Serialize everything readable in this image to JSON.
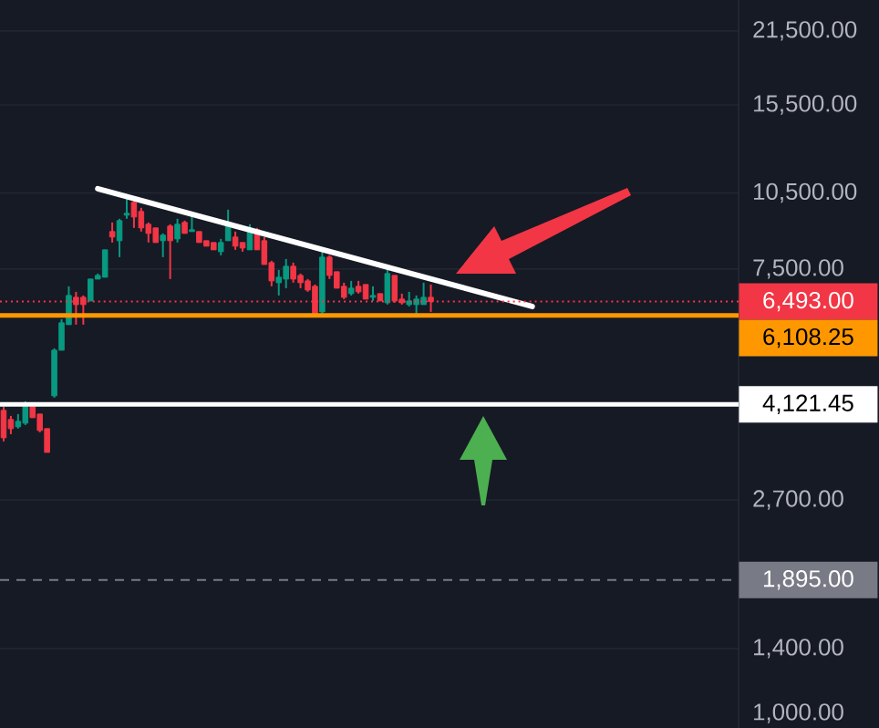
{
  "chart_data": {
    "type": "candlestick",
    "log": "y",
    "grid": "y",
    "tick_labels": "y",
    "categories": [
      null,
      null,
      null,
      null,
      null,
      null,
      null,
      null,
      null,
      null,
      null,
      null,
      null,
      null,
      null,
      null,
      null,
      null,
      null,
      null,
      null,
      null,
      null,
      null,
      null,
      null,
      null,
      null,
      null,
      null,
      null,
      null,
      null,
      null,
      null,
      null,
      null,
      null,
      null,
      null,
      null,
      null,
      null,
      null,
      null,
      null,
      null,
      null,
      null,
      null,
      null,
      null,
      null,
      null,
      null,
      null,
      null,
      null,
      null,
      null,
      null,
      null,
      null,
      null,
      null,
      null,
      null,
      null,
      null,
      null,
      null,
      null,
      null,
      null,
      null,
      null,
      null,
      null,
      null,
      null,
      null,
      null,
      null,
      null,
      null,
      null,
      null,
      null,
      null,
      null,
      null,
      null,
      null,
      null,
      null,
      null,
      null,
      null,
      null,
      null,
      null,
      null
    ],
    "ylim": [
      985,
      24650
    ],
    "yticks": [
      {
        "value": 1000,
        "label": "1,000.00"
      },
      {
        "value": 1400,
        "label": "1,400.00"
      },
      {
        "value": 2700,
        "label": "2,700.00"
      },
      {
        "value": 7500,
        "label": "7,500.00"
      },
      {
        "value": 10500,
        "label": "10,500.00"
      },
      {
        "value": 15500,
        "label": "15,500.00"
      },
      {
        "value": 21500,
        "label": "21,500.00"
      }
    ],
    "series": [
      {
        "ohlc": [
          [
            4013,
            4078,
            3499,
            3556
          ],
          [
            3855,
            3917,
            3613,
            3702
          ],
          [
            3732,
            3949,
            3702,
            3824
          ],
          [
            3793,
            4178,
            3762,
            4078
          ],
          [
            4078,
            4111,
            3886,
            3886
          ],
          [
            3949,
            3949,
            3643,
            3672
          ],
          [
            3702,
            3702,
            3333,
            3333
          ],
          [
            4280,
            5280,
            4246,
            5237
          ],
          [
            5237,
            6008,
            5237,
            5911
          ],
          [
            5864,
            6947,
            5864,
            6672
          ],
          [
            6618,
            6780,
            5864,
            6408
          ],
          [
            6618,
            6672,
            5864,
            6408
          ],
          [
            6512,
            7175,
            6512,
            7175
          ],
          [
            7175,
            7351,
            7175,
            7291
          ],
          [
            7233,
            8164,
            7233,
            8164
          ],
          [
            8851,
            9215,
            8432,
            8639
          ],
          [
            8500,
            9365,
            7905,
            9290
          ],
          [
            9517,
            10317,
            9365,
            9595
          ],
          [
            10071,
            10234,
            8995,
            9441
          ],
          [
            9673,
            9830,
            8851,
            8995
          ],
          [
            9141,
            9215,
            8432,
            8779
          ],
          [
            8995,
            8995,
            8432,
            8432
          ],
          [
            8500,
            8779,
            7905,
            8709
          ],
          [
            9068,
            9141,
            7175,
            8500
          ],
          [
            8569,
            9365,
            8432,
            9141
          ],
          [
            9215,
            9290,
            8779,
            8779
          ],
          [
            8851,
            9595,
            8851,
            8922
          ],
          [
            8851,
            8851,
            8432,
            8432
          ],
          [
            8500,
            8500,
            8297,
            8297
          ],
          [
            8432,
            8432,
            8164,
            8164
          ],
          [
            8098,
            8569,
            7969,
            8432
          ],
          [
            8500,
            9751,
            8500,
            9141
          ],
          [
            8639,
            8851,
            8164,
            8297
          ],
          [
            8432,
            8432,
            8098,
            8230
          ],
          [
            8164,
            9141,
            8164,
            8922
          ],
          [
            8922,
            8995,
            8164,
            8164
          ],
          [
            8500,
            8639,
            7653,
            7653
          ],
          [
            7715,
            7778,
            6947,
            7117
          ],
          [
            7060,
            7470,
            6672,
            7233
          ],
          [
            7175,
            7841,
            6891,
            7592
          ],
          [
            7592,
            7715,
            7060,
            7175
          ],
          [
            7291,
            7351,
            6891,
            7060
          ],
          [
            7117,
            7175,
            6780,
            6835
          ],
          [
            6947,
            7003,
            6155,
            6155
          ],
          [
            6204,
            8098,
            6155,
            7905
          ],
          [
            7905,
            7969,
            7175,
            7291
          ],
          [
            7410,
            7410,
            6891,
            6891
          ],
          [
            6947,
            7060,
            6565,
            6618
          ],
          [
            6726,
            7117,
            6672,
            6891
          ],
          [
            6947,
            7117,
            6726,
            6780
          ],
          [
            7003,
            7003,
            6565,
            6565
          ],
          [
            6618,
            6947,
            6512,
            6672
          ],
          [
            6726,
            6726,
            6512,
            6512
          ],
          [
            6460,
            7653,
            6408,
            7351
          ],
          [
            7291,
            7291,
            6460,
            6512
          ],
          [
            6565,
            6726,
            6408,
            6460
          ],
          [
            6408,
            6780,
            6356,
            6512
          ],
          [
            6408,
            6672,
            6105,
            6565
          ],
          [
            6408,
            7060,
            6408,
            6618
          ],
          [
            6618,
            7003,
            6204,
            6493
          ],
          null,
          null,
          null,
          null,
          null,
          null,
          null,
          null,
          null,
          null,
          null,
          null,
          null,
          null,
          null,
          null,
          null,
          null,
          null,
          null,
          null,
          null,
          null,
          null,
          null,
          null,
          null,
          null,
          null,
          null,
          null,
          null,
          null,
          null,
          null,
          null,
          null,
          null,
          null,
          null,
          null,
          null
        ],
        "colors": [
          "#f23645",
          "#f23645",
          "#089981",
          "#089981",
          "#f23645",
          "#f23645",
          "#f23645",
          "#089981",
          "#089981",
          "#089981",
          "#f23645",
          "#f23645",
          "#089981",
          "#089981",
          "#089981",
          "#f23645",
          "#089981",
          "#089981",
          "#f23645",
          "#f23645",
          "#f23645",
          "#f23645",
          "#089981",
          "#f23645",
          "#089981",
          "#f23645",
          "#089981",
          "#f23645",
          "#f23645",
          "#f23645",
          "#089981",
          "#089981",
          "#f23645",
          "#f23645",
          "#089981",
          "#f23645",
          "#f23645",
          "#f23645",
          "#089981",
          "#089981",
          "#f23645",
          "#f23645",
          "#f23645",
          "#f23645",
          "#089981",
          "#f23645",
          "#f23645",
          "#f23645",
          "#089981",
          "#f23645",
          "#f23645",
          "#089981",
          "#f23645",
          "#089981",
          "#f23645",
          "#f23645",
          "#089981",
          "#089981",
          "#089981",
          "#f23645",
          null,
          null,
          null,
          null,
          null,
          null,
          null,
          null,
          null,
          null,
          null,
          null,
          null,
          null,
          null,
          null,
          null,
          null,
          null,
          null,
          null,
          null,
          null,
          null,
          null,
          null,
          null,
          null,
          null,
          null,
          null,
          null,
          null,
          null,
          null,
          null,
          null,
          null,
          null,
          null,
          null,
          null
        ]
      },
      {
        "type": "line",
        "color": "#ffffff",
        "values": [
          null,
          null,
          null,
          null,
          null,
          null,
          null,
          null,
          null,
          null,
          null,
          null,
          null,
          10697,
          null,
          null,
          null,
          null,
          null,
          null,
          null,
          null,
          null,
          null,
          null,
          null,
          null,
          null,
          null,
          null,
          null,
          null,
          null,
          null,
          null,
          null,
          null,
          null,
          null,
          null,
          null,
          null,
          null,
          null,
          null,
          null,
          null,
          null,
          null,
          null,
          null,
          null,
          null,
          null,
          null,
          null,
          null,
          null,
          null,
          null,
          null,
          null,
          null,
          null,
          null,
          null,
          null,
          null,
          null,
          null,
          null,
          null,
          null,
          6356,
          null,
          null,
          null,
          null,
          null,
          null,
          null,
          null,
          null,
          null,
          null,
          null,
          null,
          null,
          null,
          null,
          null,
          null,
          null,
          null,
          null,
          null,
          null,
          null,
          null,
          null,
          null,
          null
        ]
      }
    ],
    "ref_lines": [
      {
        "axis": "y",
        "value": 6493,
        "label": "6,493.00",
        "color": "#f23645",
        "line_style": "dotted"
      },
      {
        "axis": "y",
        "value": 6108.25,
        "label": "6,108.25",
        "color": "#ff9800",
        "line_style": "solid"
      },
      {
        "axis": "y",
        "value": 4121.45,
        "label": "4,121.45",
        "color": "#ffffff",
        "line_style": "solid"
      },
      {
        "axis": "y",
        "value": 1895,
        "label": "1,895.00",
        "color": "#787b86",
        "line_style": "dashed"
      }
    ]
  }
}
